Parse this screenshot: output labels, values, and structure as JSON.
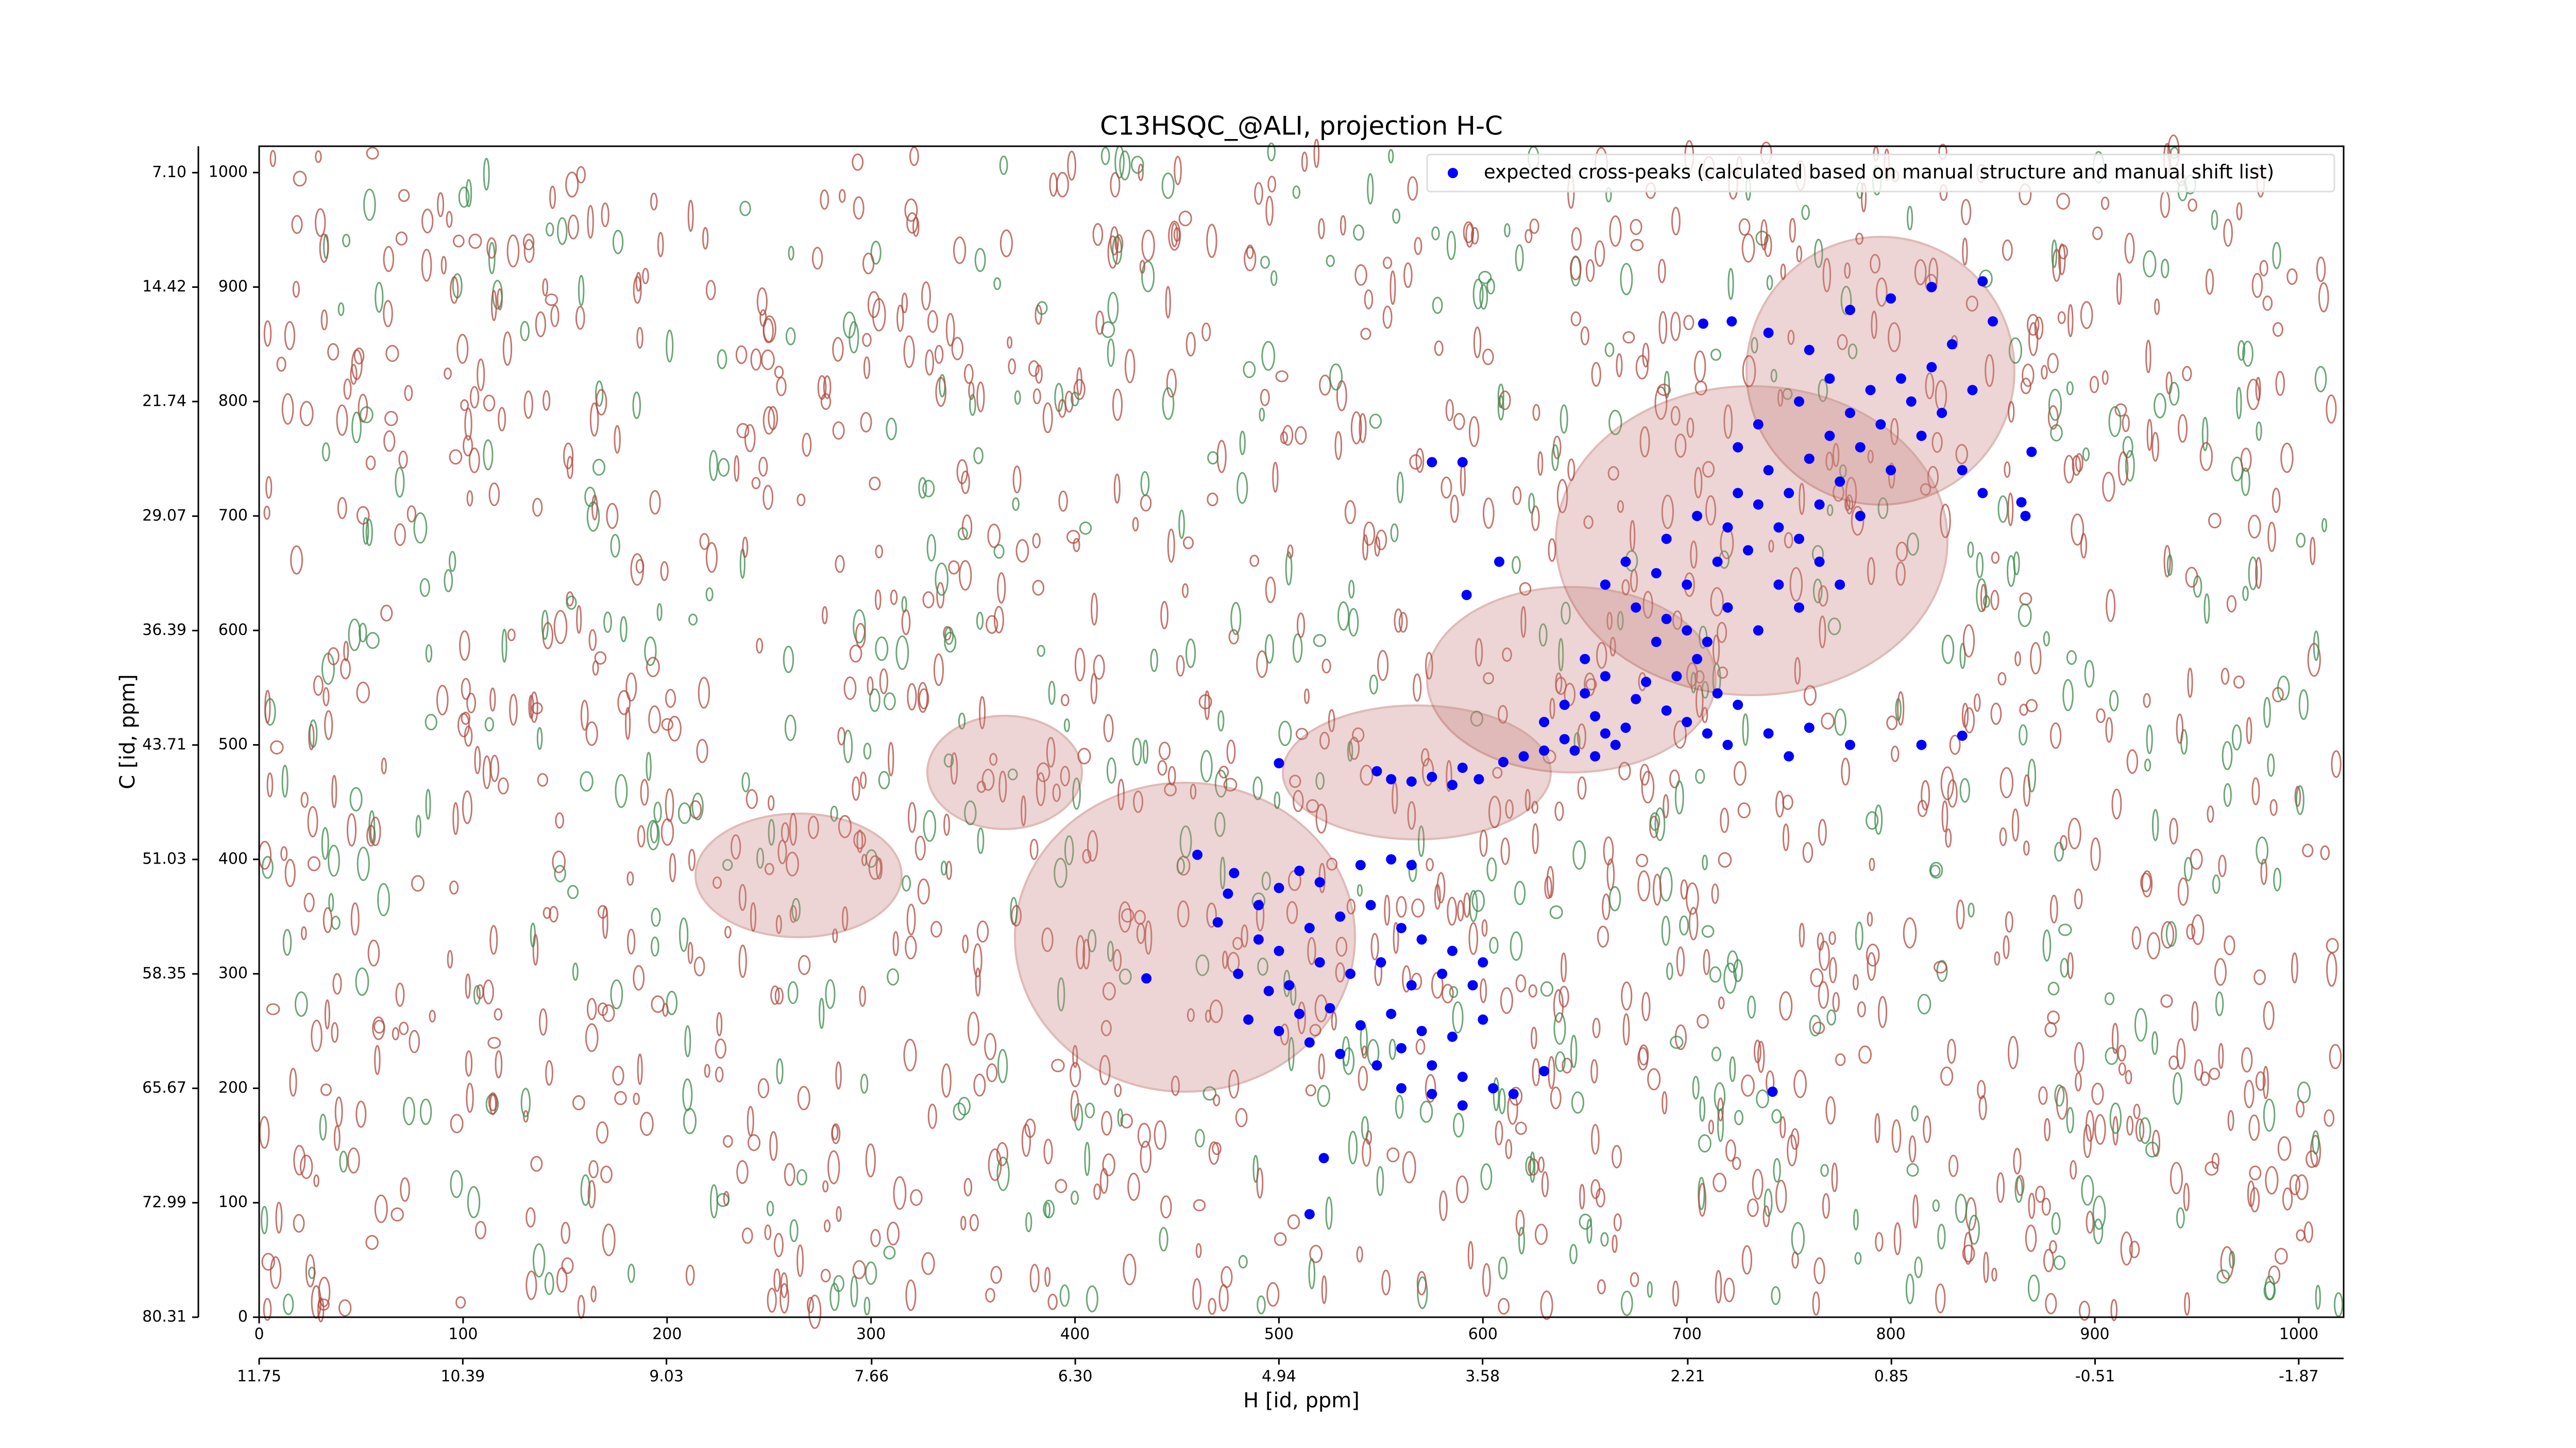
{
  "chart_data": {
    "type": "scatter",
    "title": "C13HSQC_@ALI, projection H-C",
    "x_label": "H [id, ppm]",
    "y_label": "C [id, ppm]",
    "xlim": [
      0,
      1022
    ],
    "ylim": [
      0,
      1023
    ],
    "xticks": [
      0,
      100,
      200,
      300,
      400,
      500,
      600,
      700,
      800,
      900,
      1000
    ],
    "yticks": [
      0,
      100,
      200,
      300,
      400,
      500,
      600,
      700,
      800,
      900,
      1000
    ],
    "x2lim": [
      11.75,
      -2.17
    ],
    "x2ticks": [
      11.75,
      10.39,
      9.03,
      7.66,
      {
        "value": 6.3,
        "label": "6.30"
      },
      4.94,
      3.58,
      2.21,
      0.85,
      -0.51,
      -1.87
    ],
    "y2lim": [
      80.31,
      5.41
    ],
    "y2ticks": [
      {
        "value": 7.1,
        "label": "7.10"
      },
      14.42,
      21.74,
      29.07,
      36.39,
      43.71,
      51.03,
      58.35,
      65.67,
      72.99,
      80.31
    ],
    "legend": "upper right",
    "series": [
      {
        "name": "expected cross-peaks (calculated based on manual structure and manual shift list)",
        "color": "#0000ff",
        "x": [
          460,
          478,
          475,
          470,
          490,
          500,
          510,
          520,
          540,
          555,
          565,
          490,
          500,
          515,
          530,
          545,
          560,
          570,
          585,
          600,
          480,
          495,
          505,
          520,
          535,
          550,
          565,
          580,
          595,
          510,
          525,
          540,
          555,
          570,
          585,
          600,
          530,
          548,
          560,
          575,
          590,
          605,
          560,
          575,
          590,
          615,
          630,
          500,
          515,
          485,
          500,
          548,
          555,
          565,
          575,
          585,
          590,
          598,
          610,
          620,
          630,
          630,
          640,
          650,
          655,
          660,
          665,
          670,
          640,
          645,
          655,
          675,
          680,
          690,
          700,
          710,
          720,
          695,
          705,
          715,
          725,
          685,
          660,
          650,
          740,
          750,
          760,
          780,
          815,
          835,
          660,
          670,
          675,
          685,
          690,
          700,
          705,
          715,
          720,
          725,
          730,
          735,
          740,
          745,
          750,
          755,
          760,
          765,
          770,
          775,
          780,
          785,
          790,
          795,
          800,
          805,
          810,
          815,
          820,
          825,
          830,
          835,
          840,
          845,
          850,
          745,
          735,
          720,
          710,
          755,
          690,
          700,
          765,
          775,
          785,
          725,
          735,
          708,
          722,
          740,
          760,
          780,
          800,
          820,
          845,
          770,
          755,
          590,
          575,
          869,
          435,
          522,
          515,
          742,
          592,
          608,
          864,
          866
        ],
        "y": [
          404,
          388,
          370,
          345,
          360,
          375,
          390,
          380,
          395,
          400,
          395,
          330,
          320,
          340,
          350,
          360,
          340,
          330,
          320,
          310,
          300,
          285,
          290,
          310,
          300,
          310,
          290,
          300,
          290,
          265,
          270,
          255,
          265,
          250,
          245,
          260,
          230,
          220,
          235,
          220,
          210,
          200,
          200,
          195,
          185,
          195,
          215,
          250,
          240,
          260,
          484,
          477,
          470,
          468,
          472,
          465,
          480,
          470,
          485,
          490,
          495,
          520,
          535,
          545,
          525,
          510,
          500,
          515,
          505,
          495,
          490,
          540,
          555,
          530,
          520,
          510,
          500,
          560,
          575,
          545,
          535,
          590,
          560,
          575,
          510,
          490,
          515,
          500,
          500,
          508,
          640,
          660,
          620,
          650,
          680,
          640,
          700,
          660,
          690,
          720,
          670,
          710,
          740,
          690,
          720,
          680,
          750,
          710,
          770,
          730,
          790,
          760,
          810,
          780,
          740,
          820,
          800,
          770,
          830,
          790,
          850,
          740,
          810,
          720,
          870,
          640,
          600,
          620,
          590,
          620,
          610,
          600,
          660,
          640,
          700,
          760,
          780,
          868,
          870,
          860,
          845,
          880,
          890,
          900,
          905,
          820,
          800,
          747,
          747,
          756,
          296,
          139,
          90,
          197,
          631,
          660,
          712,
          700
        ]
      }
    ]
  }
}
